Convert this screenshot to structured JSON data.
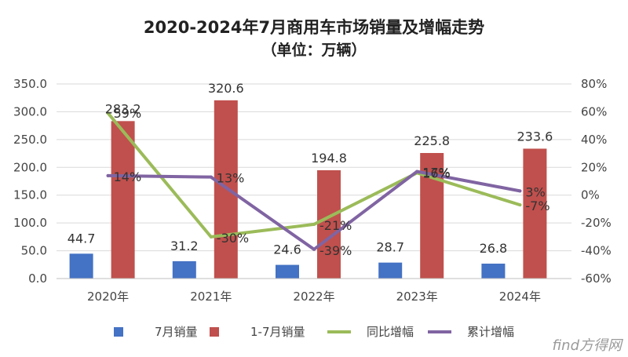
{
  "title": "2020-2024年7月商用车市场销量及增幅走势",
  "subtitle": "（单位：万辆）",
  "watermark": "find方得网",
  "chart_data": {
    "type": "bar",
    "categories": [
      "2020年",
      "2021年",
      "2022年",
      "2023年",
      "2024年"
    ],
    "series": [
      {
        "name": "7月销量",
        "type": "bar",
        "axis": "left",
        "color": "#4472C4",
        "values": [
          44.7,
          31.2,
          24.6,
          28.7,
          26.8
        ],
        "labels": [
          "44.7",
          "31.2",
          "24.6",
          "28.7",
          "26.8"
        ]
      },
      {
        "name": "1-7月销量",
        "type": "bar",
        "axis": "left",
        "color": "#C0504D",
        "values": [
          283.2,
          320.6,
          194.8,
          225.8,
          233.6
        ],
        "labels": [
          "283.2",
          "320.6",
          "194.8",
          "225.8",
          "233.6"
        ]
      },
      {
        "name": "同比增幅",
        "type": "line",
        "axis": "right",
        "color": "#9BBB59",
        "values": [
          59,
          -30,
          -21,
          16,
          -7
        ],
        "labels": [
          "59%",
          "-30%",
          "-21%",
          "16%",
          "-7%"
        ]
      },
      {
        "name": "累计增幅",
        "type": "line",
        "axis": "right",
        "color": "#8064A2",
        "values": [
          14,
          13,
          -39,
          17,
          3
        ],
        "labels": [
          "14%",
          "13%",
          "-39%",
          "17%",
          "3%"
        ]
      }
    ],
    "y_left": {
      "ylim": [
        0,
        350
      ],
      "ticks": [
        "0.0",
        "50.0",
        "100.0",
        "150.0",
        "200.0",
        "250.0",
        "300.0",
        "350.0"
      ]
    },
    "y_right": {
      "ylim": [
        -60,
        80
      ],
      "ticks": [
        "-60%",
        "-40%",
        "-20%",
        "0%",
        "20%",
        "40%",
        "60%",
        "80%"
      ]
    },
    "grid": true,
    "legend": "bottom"
  }
}
